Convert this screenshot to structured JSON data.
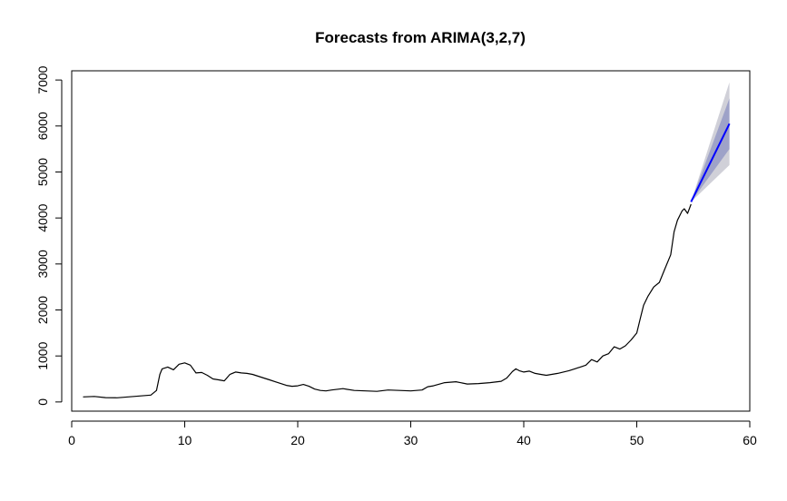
{
  "chart_data": {
    "type": "line",
    "title": "Forecasts from ARIMA(3,2,7)",
    "xlabel": "",
    "ylabel": "",
    "xlim": [
      0,
      60
    ],
    "ylim": [
      -200,
      7200
    ],
    "x_ticks": [
      0,
      10,
      20,
      30,
      40,
      50,
      60
    ],
    "y_ticks": [
      0,
      1000,
      2000,
      3000,
      4000,
      5000,
      6000,
      7000
    ],
    "x_tick_labels": [
      "0",
      "10",
      "20",
      "30",
      "40",
      "50",
      "60"
    ],
    "y_tick_labels": [
      "0",
      "1000",
      "2000",
      "3000",
      "4000",
      "5000",
      "6000",
      "7000"
    ],
    "grid": false,
    "series": [
      {
        "role": "observed",
        "color": "#000000",
        "x": [
          1,
          2,
          3,
          4,
          5,
          6,
          7,
          7.5,
          7.8,
          8,
          8.5,
          9,
          9.5,
          10,
          10.5,
          11,
          11.5,
          12,
          12.5,
          13,
          13.5,
          14,
          14.5,
          15,
          15.5,
          16,
          16.5,
          17,
          17.5,
          18,
          18.5,
          19,
          19.5,
          20,
          20.5,
          21,
          21.5,
          22,
          22.5,
          23,
          24,
          25,
          26,
          27,
          28,
          29,
          30,
          31,
          31.5,
          32,
          33,
          34,
          35,
          36,
          37,
          38,
          38.5,
          39,
          39.3,
          39.6,
          40,
          40.5,
          41,
          41.5,
          42,
          43,
          44,
          45,
          45.5,
          46,
          46.5,
          47,
          47.5,
          48,
          48.5,
          49,
          49.5,
          50,
          50.3,
          50.6,
          51,
          51.5,
          52,
          52.5,
          53,
          53.3,
          53.6,
          54,
          54.2,
          54.5,
          54.8
        ],
        "y": [
          110,
          120,
          95,
          90,
          110,
          130,
          150,
          250,
          600,
          720,
          760,
          700,
          820,
          850,
          800,
          630,
          640,
          580,
          500,
          480,
          460,
          600,
          650,
          630,
          620,
          600,
          560,
          520,
          480,
          440,
          400,
          360,
          340,
          350,
          380,
          340,
          280,
          250,
          240,
          260,
          290,
          250,
          240,
          230,
          260,
          250,
          240,
          260,
          330,
          350,
          420,
          440,
          390,
          400,
          420,
          450,
          520,
          660,
          720,
          680,
          650,
          670,
          620,
          600,
          580,
          620,
          680,
          760,
          800,
          920,
          870,
          1000,
          1050,
          1200,
          1150,
          1220,
          1350,
          1500,
          1800,
          2100,
          2300,
          2500,
          2600,
          2900,
          3200,
          3700,
          3950,
          4150,
          4200,
          4100,
          4300
        ]
      },
      {
        "role": "forecast",
        "color": "#0000ff",
        "x": [
          54.8,
          58.2
        ],
        "y": [
          4350,
          6050
        ]
      }
    ],
    "intervals": [
      {
        "role": "95% interval",
        "color": "#d0d0d8",
        "x": [
          54.8,
          58.2
        ],
        "lower": [
          4350,
          5150
        ],
        "upper": [
          4350,
          6950
        ]
      },
      {
        "role": "80% interval",
        "color": "#9ea2c8",
        "x": [
          54.8,
          58.2
        ],
        "lower": [
          4350,
          5500
        ],
        "upper": [
          4350,
          6600
        ]
      }
    ]
  }
}
